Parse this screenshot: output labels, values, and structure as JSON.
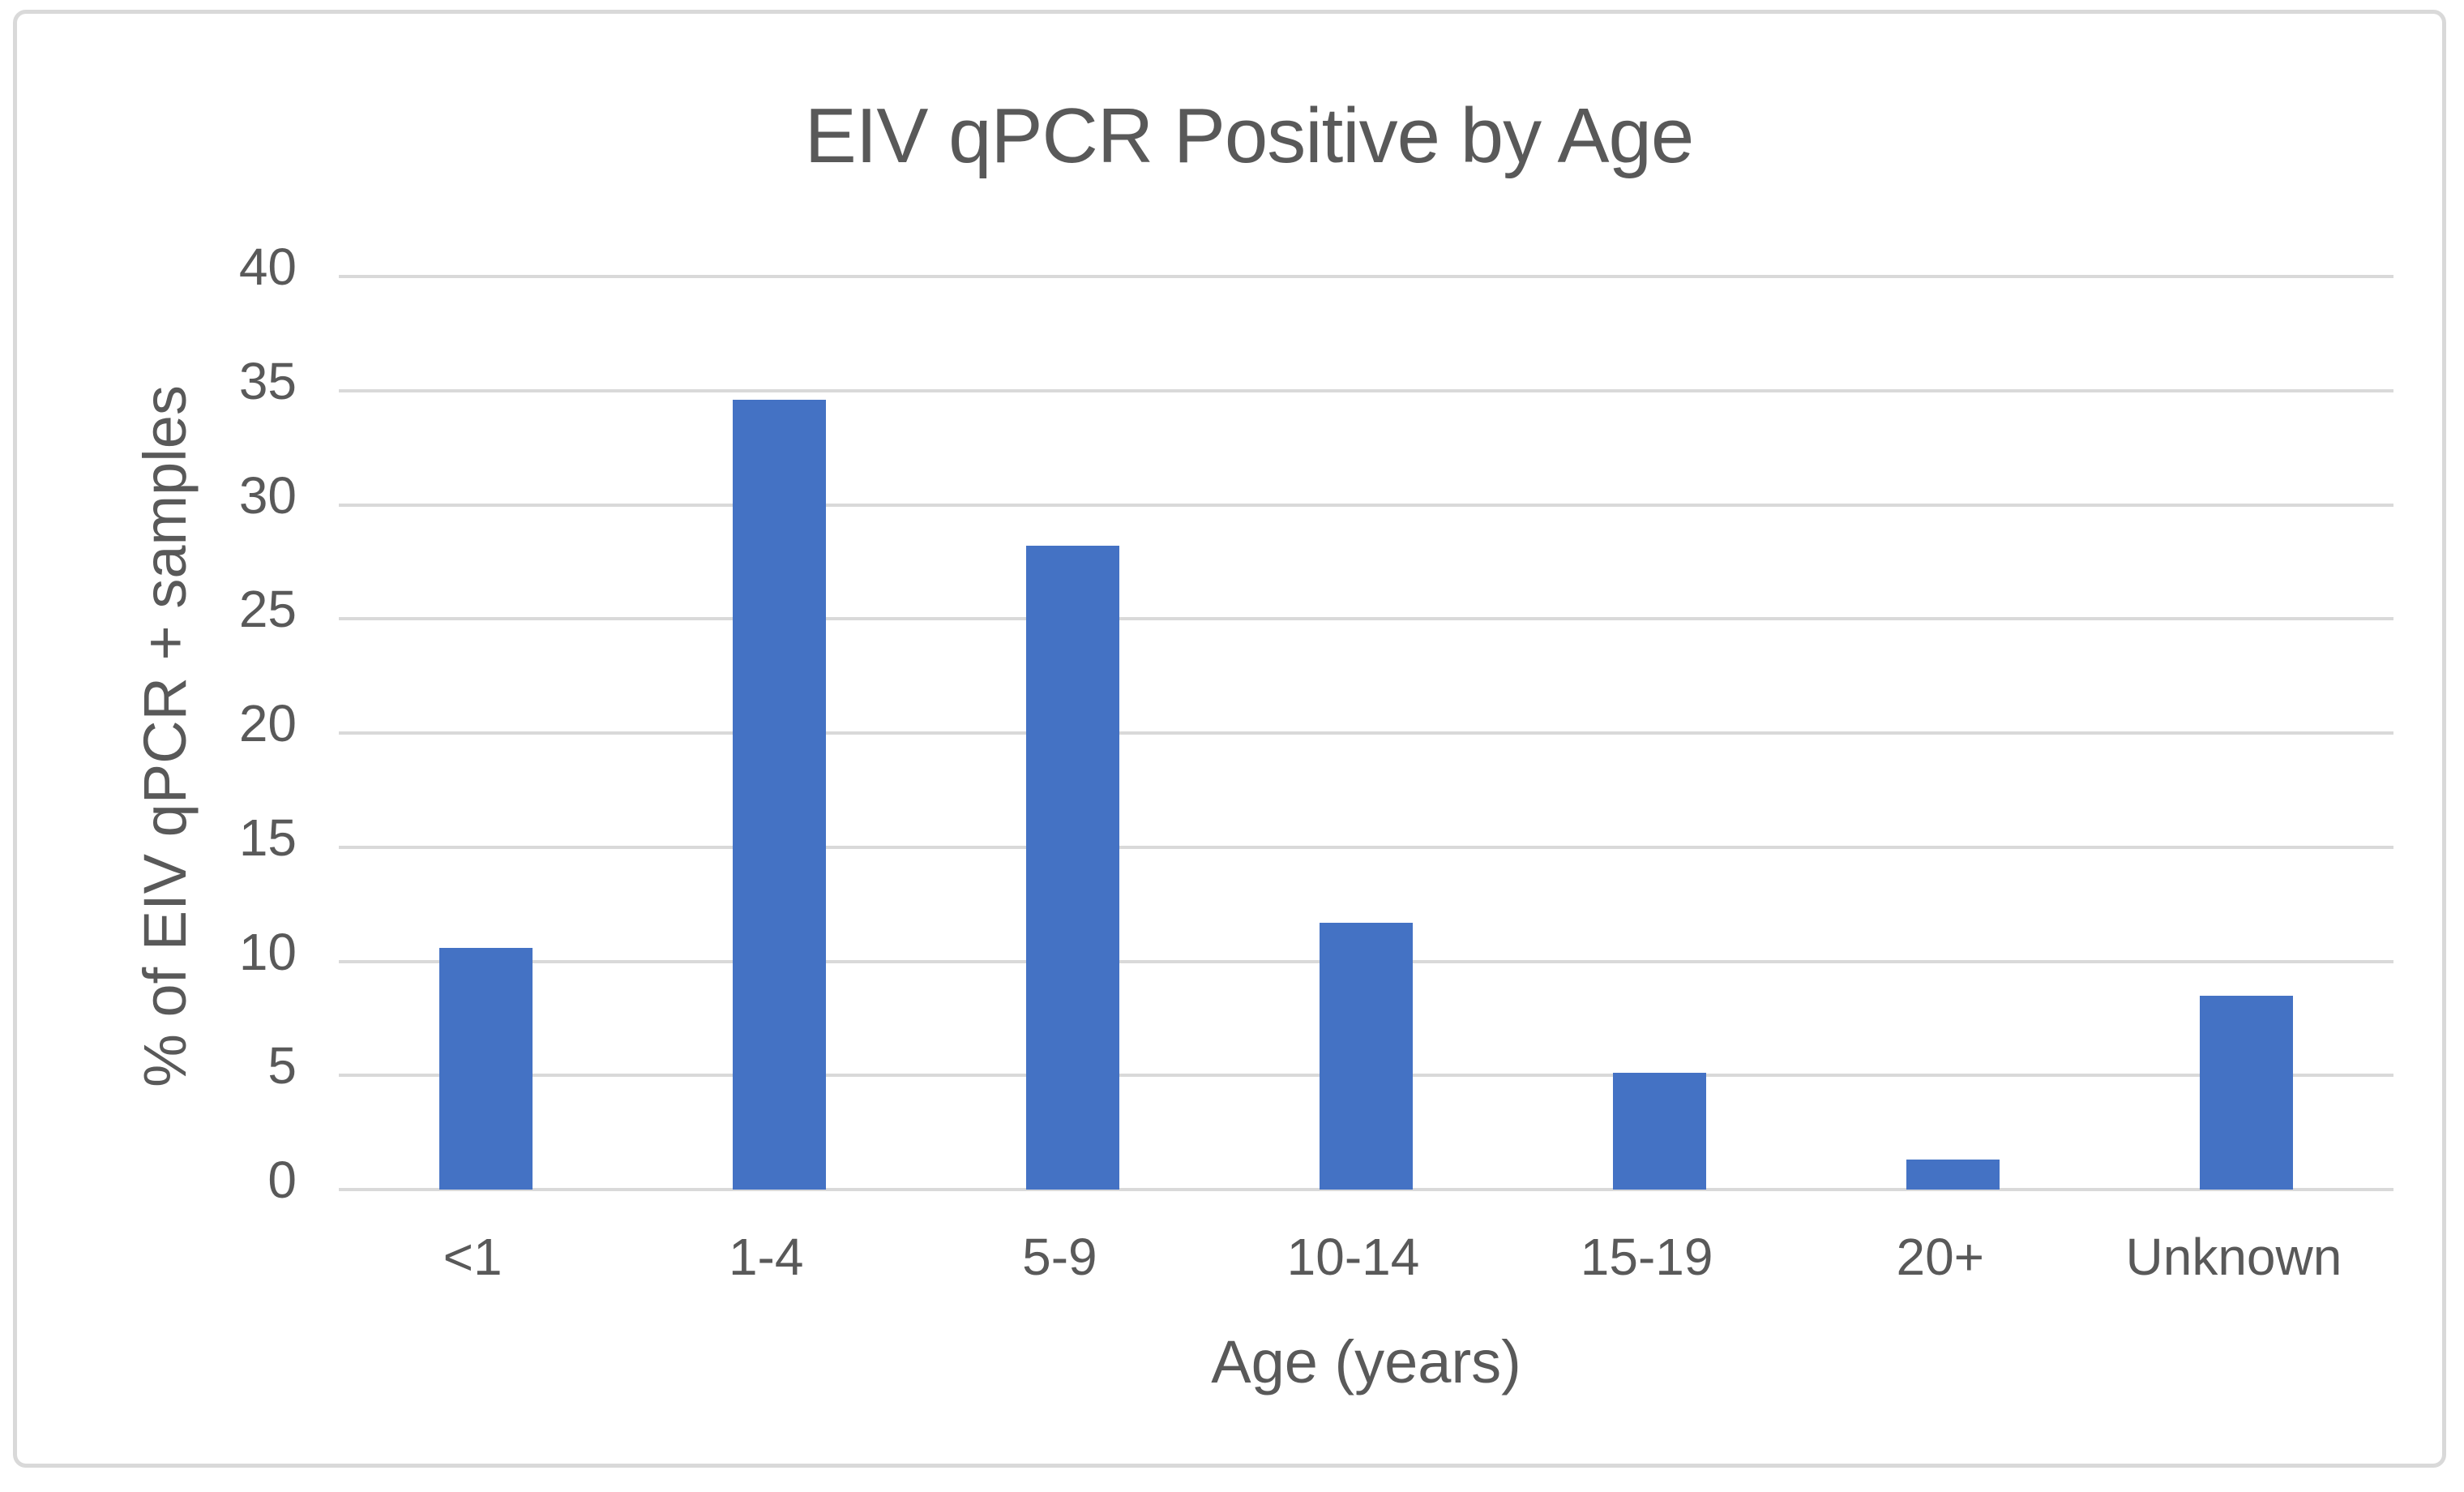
{
  "chart_data": {
    "type": "bar",
    "title": "EIV qPCR Positive by Age",
    "categories": [
      "<1",
      "1-4",
      "5-9",
      "10-14",
      "15-19",
      "20+",
      "Unknown"
    ],
    "values": [
      10.6,
      34.6,
      28.2,
      11.7,
      5.1,
      1.3,
      8.5
    ],
    "xlabel": "Age (years)",
    "ylabel": "% of EIV qPCR + samples",
    "ylim": [
      0,
      40
    ],
    "yticks": [
      0,
      5,
      10,
      15,
      20,
      25,
      30,
      35,
      40
    ],
    "grid": "horizontal-only",
    "legend": "none",
    "colors": {
      "bar": "#4472C4",
      "gridline": "#D9D9D9",
      "frame_border": "#D9D9D9",
      "text": "#595959",
      "background": "#FFFFFF"
    }
  }
}
